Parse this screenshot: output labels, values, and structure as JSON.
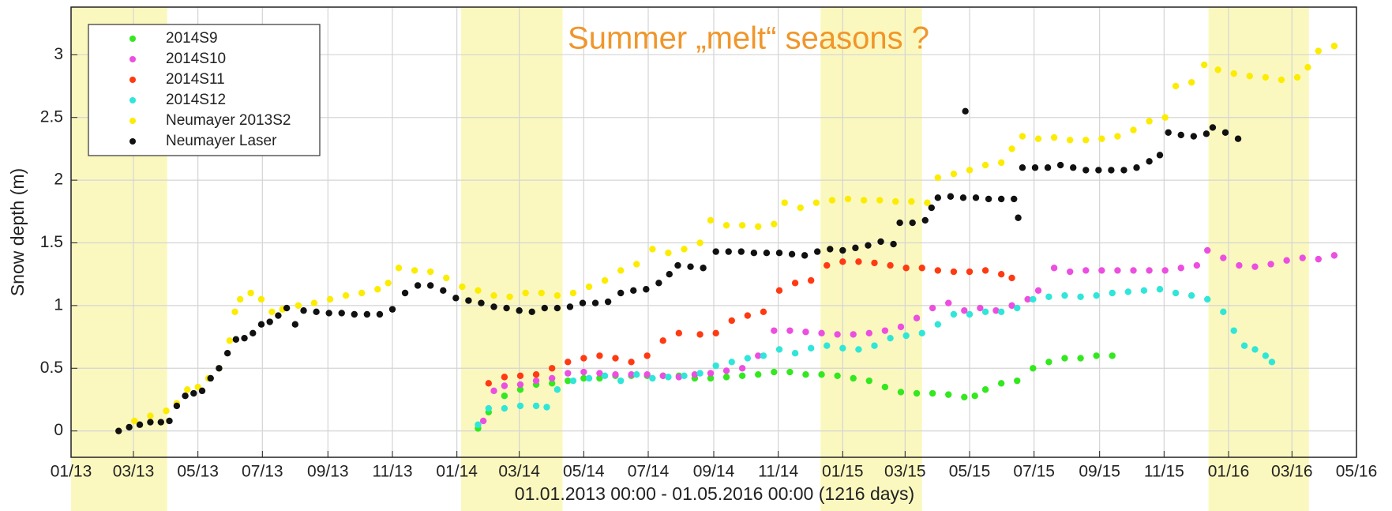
{
  "chart_data": {
    "type": "scatter",
    "title": "Summer „melt“ seasons ?",
    "x_label": "01.01.2013 00:00 - 01.05.2016 00:00 (1216 days)",
    "y_label": "Snow depth (m)",
    "xlim": [
      0,
      1216
    ],
    "ylim": [
      -0.21,
      3.38
    ],
    "xticks": [
      {
        "value": 0,
        "label": "01/13"
      },
      {
        "value": 59,
        "label": "03/13"
      },
      {
        "value": 120,
        "label": "05/13"
      },
      {
        "value": 181,
        "label": "07/13"
      },
      {
        "value": 243,
        "label": "09/13"
      },
      {
        "value": 304,
        "label": "11/13"
      },
      {
        "value": 365,
        "label": "01/14"
      },
      {
        "value": 424,
        "label": "03/14"
      },
      {
        "value": 485,
        "label": "05/14"
      },
      {
        "value": 546,
        "label": "07/14"
      },
      {
        "value": 608,
        "label": "09/14"
      },
      {
        "value": 669,
        "label": "11/14"
      },
      {
        "value": 730,
        "label": "01/15"
      },
      {
        "value": 789,
        "label": "03/15"
      },
      {
        "value": 850,
        "label": "05/15"
      },
      {
        "value": 911,
        "label": "07/15"
      },
      {
        "value": 973,
        "label": "09/15"
      },
      {
        "value": 1034,
        "label": "11/15"
      },
      {
        "value": 1095,
        "label": "01/16"
      },
      {
        "value": 1155,
        "label": "03/16"
      },
      {
        "value": 1216,
        "label": "05/16"
      }
    ],
    "yticks": [
      0,
      0.5,
      1,
      1.5,
      2,
      2.5,
      3
    ],
    "grid": true,
    "legend": "upper-left",
    "highlight_color": "#fbf8bf",
    "highlight_spans": [
      [
        0,
        91
      ],
      [
        369,
        465
      ],
      [
        709,
        805
      ],
      [
        1076,
        1171
      ]
    ],
    "series": [
      {
        "name": "2014S9",
        "color": "#33e81f",
        "x": [
          385,
          395,
          410,
          425,
          440,
          455,
          470,
          485,
          500,
          515,
          530,
          545,
          560,
          575,
          590,
          605,
          620,
          635,
          650,
          665,
          680,
          695,
          710,
          725,
          740,
          755,
          770,
          785,
          800,
          815,
          830,
          845,
          855,
          865,
          880,
          895,
          910,
          925,
          940,
          955,
          970,
          985
        ],
        "values": [
          0.02,
          0.15,
          0.28,
          0.33,
          0.37,
          0.38,
          0.4,
          0.42,
          0.42,
          0.44,
          0.44,
          0.44,
          0.44,
          0.44,
          0.42,
          0.42,
          0.43,
          0.44,
          0.45,
          0.47,
          0.47,
          0.45,
          0.45,
          0.44,
          0.42,
          0.4,
          0.35,
          0.31,
          0.3,
          0.3,
          0.29,
          0.27,
          0.28,
          0.33,
          0.38,
          0.4,
          0.5,
          0.55,
          0.58,
          0.58,
          0.6,
          0.6
        ]
      },
      {
        "name": "2014S10",
        "color": "#ec4fe0",
        "x": [
          390,
          400,
          410,
          425,
          440,
          455,
          470,
          485,
          500,
          515,
          530,
          545,
          560,
          575,
          590,
          605,
          620,
          635,
          650,
          665,
          680,
          695,
          710,
          725,
          740,
          755,
          770,
          785,
          800,
          815,
          830,
          845,
          860,
          875,
          890,
          905,
          915,
          930,
          945,
          960,
          975,
          990,
          1005,
          1020,
          1035,
          1050,
          1065,
          1075,
          1090,
          1105,
          1120,
          1135,
          1150,
          1165,
          1180,
          1195
        ],
        "values": [
          0.08,
          0.32,
          0.36,
          0.37,
          0.4,
          0.42,
          0.46,
          0.47,
          0.46,
          0.45,
          0.45,
          0.45,
          0.44,
          0.43,
          0.45,
          0.46,
          0.48,
          0.5,
          0.6,
          0.8,
          0.8,
          0.79,
          0.78,
          0.77,
          0.77,
          0.78,
          0.8,
          0.83,
          0.9,
          0.98,
          1.02,
          0.96,
          0.98,
          0.96,
          1.0,
          1.05,
          1.12,
          1.3,
          1.27,
          1.28,
          1.28,
          1.28,
          1.28,
          1.28,
          1.28,
          1.3,
          1.32,
          1.44,
          1.38,
          1.32,
          1.31,
          1.33,
          1.36,
          1.38,
          1.37,
          1.4
        ]
      },
      {
        "name": "2014S11",
        "color": "#ff3a12",
        "x": [
          395,
          410,
          425,
          440,
          455,
          470,
          485,
          500,
          515,
          530,
          545,
          560,
          575,
          595,
          610,
          625,
          640,
          655,
          670,
          685,
          700,
          715,
          730,
          745,
          760,
          775,
          790,
          805,
          820,
          835,
          850,
          865,
          880,
          890
        ],
        "values": [
          0.38,
          0.43,
          0.44,
          0.45,
          0.5,
          0.55,
          0.58,
          0.6,
          0.58,
          0.55,
          0.6,
          0.72,
          0.78,
          0.77,
          0.78,
          0.88,
          0.92,
          0.95,
          1.12,
          1.18,
          1.2,
          1.32,
          1.35,
          1.35,
          1.34,
          1.32,
          1.3,
          1.3,
          1.28,
          1.27,
          1.27,
          1.28,
          1.25,
          1.22
        ]
      },
      {
        "name": "2014S12",
        "color": "#30e6d8",
        "x": [
          385,
          395,
          410,
          425,
          440,
          450,
          460,
          475,
          490,
          505,
          520,
          535,
          550,
          565,
          580,
          595,
          610,
          625,
          640,
          655,
          670,
          685,
          700,
          715,
          730,
          745,
          760,
          775,
          790,
          805,
          820,
          835,
          850,
          865,
          880,
          895,
          910,
          925,
          940,
          955,
          970,
          985,
          1000,
          1015,
          1030,
          1045,
          1060,
          1075,
          1090,
          1100,
          1110,
          1120,
          1130,
          1136
        ],
        "values": [
          0.05,
          0.18,
          0.18,
          0.2,
          0.2,
          0.19,
          0.33,
          0.4,
          0.42,
          0.44,
          0.4,
          0.45,
          0.42,
          0.43,
          0.44,
          0.46,
          0.52,
          0.55,
          0.58,
          0.6,
          0.65,
          0.62,
          0.66,
          0.68,
          0.66,
          0.65,
          0.68,
          0.74,
          0.76,
          0.78,
          0.85,
          0.93,
          0.93,
          0.95,
          0.95,
          0.98,
          1.05,
          1.07,
          1.08,
          1.07,
          1.08,
          1.1,
          1.11,
          1.12,
          1.13,
          1.1,
          1.08,
          1.05,
          0.95,
          0.8,
          0.68,
          0.65,
          0.6,
          0.55
        ]
      },
      {
        "name": "Neumayer 2013S2",
        "color": "#fbec00",
        "x": [
          45,
          60,
          75,
          90,
          100,
          110,
          120,
          130,
          140,
          150,
          155,
          160,
          170,
          180,
          190,
          200,
          215,
          230,
          245,
          260,
          275,
          290,
          300,
          310,
          325,
          340,
          355,
          370,
          385,
          400,
          415,
          430,
          445,
          460,
          475,
          490,
          505,
          520,
          535,
          550,
          565,
          580,
          595,
          605,
          620,
          635,
          650,
          665,
          675,
          690,
          705,
          720,
          735,
          750,
          765,
          780,
          795,
          810,
          820,
          835,
          850,
          865,
          880,
          890,
          900,
          915,
          930,
          945,
          960,
          975,
          990,
          1005,
          1020,
          1035,
          1045,
          1060,
          1072,
          1085,
          1100,
          1115,
          1130,
          1145,
          1160,
          1170,
          1180,
          1195
        ],
        "values": [
          0.0,
          0.08,
          0.12,
          0.16,
          0.22,
          0.33,
          0.35,
          0.42,
          0.5,
          0.72,
          0.95,
          1.05,
          1.1,
          1.05,
          0.95,
          0.97,
          1.0,
          1.02,
          1.05,
          1.08,
          1.1,
          1.13,
          1.18,
          1.3,
          1.28,
          1.27,
          1.22,
          1.15,
          1.12,
          1.08,
          1.07,
          1.1,
          1.1,
          1.08,
          1.1,
          1.15,
          1.2,
          1.28,
          1.33,
          1.45,
          1.42,
          1.45,
          1.5,
          1.68,
          1.64,
          1.64,
          1.63,
          1.65,
          1.82,
          1.78,
          1.82,
          1.84,
          1.85,
          1.84,
          1.84,
          1.83,
          1.83,
          1.82,
          2.02,
          2.05,
          2.08,
          2.12,
          2.14,
          2.25,
          2.35,
          2.33,
          2.34,
          2.32,
          2.32,
          2.33,
          2.35,
          2.4,
          2.47,
          2.5,
          2.75,
          2.78,
          2.92,
          2.88,
          2.85,
          2.83,
          2.82,
          2.8,
          2.82,
          2.9,
          3.03,
          3.07
        ]
      },
      {
        "name": "Neumayer Laser",
        "color": "#111111",
        "x": [
          45,
          55,
          65,
          75,
          85,
          93,
          100,
          108,
          116,
          124,
          132,
          140,
          148,
          156,
          164,
          172,
          180,
          188,
          196,
          204,
          212,
          220,
          232,
          244,
          256,
          268,
          280,
          292,
          304,
          316,
          328,
          340,
          352,
          364,
          376,
          388,
          400,
          412,
          424,
          436,
          448,
          460,
          472,
          484,
          496,
          508,
          520,
          532,
          544,
          556,
          566,
          574,
          586,
          598,
          610,
          622,
          634,
          646,
          658,
          670,
          682,
          694,
          706,
          718,
          730,
          742,
          754,
          766,
          778,
          784,
          796,
          808,
          814,
          820,
          832,
          844,
          846,
          856,
          868,
          880,
          892,
          896,
          900,
          912,
          924,
          936,
          948,
          960,
          972,
          984,
          996,
          1008,
          1020,
          1030,
          1038,
          1050,
          1062,
          1074,
          1080,
          1092,
          1104
        ],
        "values": [
          0.0,
          0.03,
          0.05,
          0.07,
          0.07,
          0.08,
          0.2,
          0.28,
          0.3,
          0.32,
          0.42,
          0.5,
          0.62,
          0.73,
          0.74,
          0.78,
          0.85,
          0.87,
          0.92,
          0.98,
          0.85,
          0.96,
          0.95,
          0.94,
          0.94,
          0.93,
          0.93,
          0.93,
          0.97,
          1.1,
          1.16,
          1.16,
          1.12,
          1.06,
          1.04,
          1.02,
          0.99,
          0.98,
          0.96,
          0.95,
          0.98,
          0.98,
          0.99,
          1.02,
          1.02,
          1.03,
          1.1,
          1.12,
          1.13,
          1.18,
          1.25,
          1.32,
          1.31,
          1.3,
          1.43,
          1.43,
          1.43,
          1.42,
          1.42,
          1.42,
          1.41,
          1.4,
          1.43,
          1.45,
          1.44,
          1.46,
          1.48,
          1.51,
          1.49,
          1.66,
          1.66,
          1.68,
          1.78,
          1.86,
          1.87,
          1.86,
          2.55,
          1.86,
          1.85,
          1.85,
          1.85,
          1.7,
          2.1,
          2.1,
          2.1,
          2.12,
          2.1,
          2.08,
          2.08,
          2.08,
          2.08,
          2.1,
          2.15,
          2.2,
          2.38,
          2.36,
          2.35,
          2.37,
          2.42,
          2.38,
          2.33
        ]
      }
    ]
  }
}
